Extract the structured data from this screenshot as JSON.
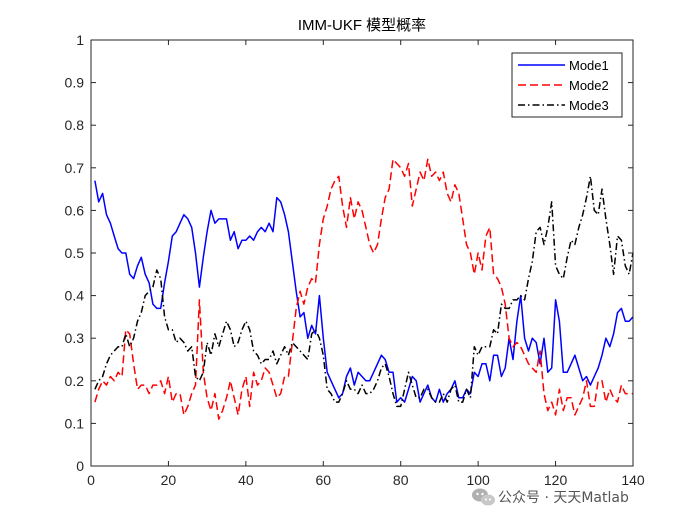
{
  "chart_data": {
    "type": "line",
    "title": "IMM-UKF 模型概率",
    "xlabel": "",
    "ylabel": "",
    "xlim": [
      0,
      140
    ],
    "ylim": [
      0,
      1
    ],
    "xticks": [
      0,
      20,
      40,
      60,
      80,
      100,
      120,
      140
    ],
    "yticks": [
      0,
      0.1,
      0.2,
      0.3,
      0.4,
      0.5,
      0.6,
      0.7,
      0.8,
      0.9,
      1
    ],
    "xtick_labels": [
      "0",
      "20",
      "40",
      "60",
      "80",
      "100",
      "120",
      "140"
    ],
    "ytick_labels": [
      "0",
      "0.1",
      "0.2",
      "0.3",
      "0.4",
      "0.5",
      "0.6",
      "0.7",
      "0.8",
      "0.9",
      "1"
    ],
    "grid": false,
    "legend_position": "top-right",
    "x": [
      1,
      2,
      3,
      4,
      5,
      6,
      7,
      8,
      9,
      10,
      11,
      12,
      13,
      14,
      15,
      16,
      17,
      18,
      19,
      20,
      21,
      22,
      23,
      24,
      25,
      26,
      27,
      28,
      29,
      30,
      31,
      32,
      33,
      34,
      35,
      36,
      37,
      38,
      39,
      40,
      41,
      42,
      43,
      44,
      45,
      46,
      47,
      48,
      49,
      50,
      51,
      52,
      53,
      54,
      55,
      56,
      57,
      58,
      59,
      60,
      61,
      62,
      63,
      64,
      65,
      66,
      67,
      68,
      69,
      70,
      71,
      72,
      73,
      74,
      75,
      76,
      77,
      78,
      79,
      80,
      81,
      82,
      83,
      84,
      85,
      86,
      87,
      88,
      89,
      90,
      91,
      92,
      93,
      94,
      95,
      96,
      97,
      98,
      99,
      100,
      101,
      102,
      103,
      104,
      105,
      106,
      107,
      108,
      109,
      110,
      111,
      112,
      113,
      114,
      115,
      116,
      117,
      118,
      119,
      120,
      121,
      122,
      123,
      124,
      125,
      126,
      127,
      128,
      129,
      130,
      131,
      132,
      133,
      134,
      135,
      136,
      137,
      138,
      139,
      140
    ],
    "series": [
      {
        "name": "Mode1",
        "color": "#0000ff",
        "dash": "solid",
        "values": [
          0.67,
          0.62,
          0.64,
          0.59,
          0.57,
          0.54,
          0.51,
          0.5,
          0.5,
          0.45,
          0.44,
          0.47,
          0.49,
          0.45,
          0.43,
          0.38,
          0.37,
          0.37,
          0.43,
          0.48,
          0.54,
          0.55,
          0.57,
          0.59,
          0.58,
          0.56,
          0.5,
          0.42,
          0.49,
          0.55,
          0.6,
          0.57,
          0.58,
          0.58,
          0.58,
          0.53,
          0.55,
          0.51,
          0.53,
          0.53,
          0.54,
          0.53,
          0.55,
          0.56,
          0.55,
          0.57,
          0.55,
          0.63,
          0.62,
          0.59,
          0.55,
          0.48,
          0.41,
          0.35,
          0.36,
          0.3,
          0.33,
          0.31,
          0.4,
          0.3,
          0.22,
          0.2,
          0.18,
          0.16,
          0.17,
          0.21,
          0.23,
          0.19,
          0.22,
          0.21,
          0.2,
          0.2,
          0.22,
          0.24,
          0.26,
          0.25,
          0.22,
          0.22,
          0.15,
          0.16,
          0.15,
          0.18,
          0.21,
          0.2,
          0.15,
          0.17,
          0.19,
          0.16,
          0.15,
          0.18,
          0.15,
          0.17,
          0.18,
          0.2,
          0.16,
          0.16,
          0.18,
          0.17,
          0.22,
          0.21,
          0.24,
          0.24,
          0.2,
          0.26,
          0.26,
          0.21,
          0.23,
          0.3,
          0.25,
          0.34,
          0.4,
          0.3,
          0.27,
          0.3,
          0.29,
          0.24,
          0.3,
          0.22,
          0.23,
          0.39,
          0.34,
          0.22,
          0.22,
          0.24,
          0.26,
          0.23,
          0.2,
          0.21,
          0.19,
          0.21,
          0.23,
          0.26,
          0.3,
          0.28,
          0.31,
          0.36,
          0.37,
          0.34,
          0.34,
          0.35
        ]
      },
      {
        "name": "Mode2",
        "color": "#ff0000",
        "dash": "dashed",
        "values": [
          0.15,
          0.18,
          0.2,
          0.19,
          0.21,
          0.2,
          0.22,
          0.21,
          0.32,
          0.31,
          0.24,
          0.18,
          0.19,
          0.19,
          0.17,
          0.19,
          0.19,
          0.2,
          0.17,
          0.21,
          0.15,
          0.17,
          0.17,
          0.12,
          0.14,
          0.17,
          0.19,
          0.39,
          0.22,
          0.16,
          0.13,
          0.17,
          0.11,
          0.13,
          0.16,
          0.2,
          0.16,
          0.12,
          0.18,
          0.21,
          0.14,
          0.22,
          0.19,
          0.2,
          0.23,
          0.22,
          0.19,
          0.16,
          0.17,
          0.21,
          0.21,
          0.29,
          0.37,
          0.41,
          0.38,
          0.42,
          0.44,
          0.43,
          0.52,
          0.58,
          0.61,
          0.65,
          0.67,
          0.68,
          0.61,
          0.56,
          0.63,
          0.58,
          0.62,
          0.6,
          0.56,
          0.52,
          0.5,
          0.52,
          0.58,
          0.63,
          0.65,
          0.72,
          0.71,
          0.7,
          0.68,
          0.71,
          0.61,
          0.65,
          0.69,
          0.67,
          0.72,
          0.68,
          0.69,
          0.67,
          0.69,
          0.64,
          0.62,
          0.66,
          0.64,
          0.58,
          0.52,
          0.5,
          0.45,
          0.5,
          0.46,
          0.54,
          0.56,
          0.45,
          0.44,
          0.42,
          0.38,
          0.3,
          0.28,
          0.29,
          0.28,
          0.26,
          0.24,
          0.23,
          0.22,
          0.27,
          0.17,
          0.13,
          0.15,
          0.12,
          0.18,
          0.13,
          0.16,
          0.16,
          0.12,
          0.14,
          0.16,
          0.2,
          0.14,
          0.14,
          0.2,
          0.2,
          0.15,
          0.18,
          0.16,
          0.15,
          0.19,
          0.17,
          0.17,
          0.17
        ]
      },
      {
        "name": "Mode3",
        "color": "#000000",
        "dash": "dashdot",
        "values": [
          0.18,
          0.2,
          0.21,
          0.24,
          0.26,
          0.27,
          0.28,
          0.28,
          0.31,
          0.28,
          0.3,
          0.34,
          0.36,
          0.4,
          0.41,
          0.42,
          0.46,
          0.44,
          0.35,
          0.32,
          0.32,
          0.29,
          0.3,
          0.29,
          0.27,
          0.28,
          0.21,
          0.2,
          0.22,
          0.29,
          0.26,
          0.31,
          0.28,
          0.31,
          0.34,
          0.32,
          0.28,
          0.29,
          0.32,
          0.34,
          0.32,
          0.27,
          0.26,
          0.24,
          0.25,
          0.25,
          0.27,
          0.24,
          0.26,
          0.28,
          0.26,
          0.29,
          0.28,
          0.27,
          0.26,
          0.25,
          0.31,
          0.32,
          0.3,
          0.26,
          0.18,
          0.17,
          0.15,
          0.15,
          0.17,
          0.2,
          0.18,
          0.18,
          0.17,
          0.19,
          0.17,
          0.17,
          0.18,
          0.2,
          0.23,
          0.24,
          0.21,
          0.17,
          0.14,
          0.14,
          0.18,
          0.22,
          0.19,
          0.16,
          0.16,
          0.18,
          0.18,
          0.16,
          0.15,
          0.15,
          0.17,
          0.15,
          0.18,
          0.19,
          0.15,
          0.15,
          0.18,
          0.16,
          0.28,
          0.26,
          0.28,
          0.28,
          0.28,
          0.32,
          0.31,
          0.38,
          0.37,
          0.37,
          0.39,
          0.39,
          0.4,
          0.39,
          0.44,
          0.48,
          0.55,
          0.56,
          0.52,
          0.56,
          0.62,
          0.47,
          0.45,
          0.44,
          0.49,
          0.53,
          0.52,
          0.56,
          0.59,
          0.63,
          0.68,
          0.6,
          0.59,
          0.65,
          0.58,
          0.52,
          0.45,
          0.54,
          0.53,
          0.47,
          0.45,
          0.5
        ]
      }
    ]
  },
  "watermark": {
    "icon": "wechat-icon",
    "text": "公众号 · 天天Matlab"
  }
}
